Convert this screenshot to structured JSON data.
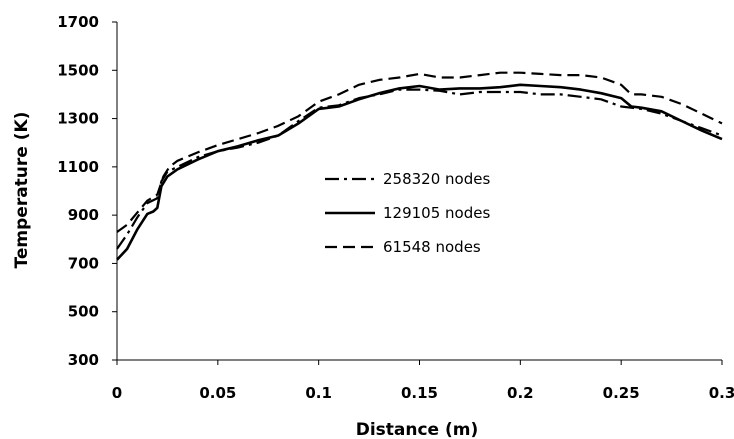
{
  "chart_data": {
    "type": "line",
    "title": "",
    "xlabel": "Distance (m)",
    "ylabel": "Temperature (K)",
    "xlim": [
      0,
      0.3
    ],
    "ylim": [
      300,
      1700
    ],
    "x_ticks": [
      "0",
      "0.05",
      "0.1",
      "0.15",
      "0.2",
      "0.25",
      "0.3"
    ],
    "y_ticks": [
      "300",
      "500",
      "700",
      "900",
      "1100",
      "1300",
      "1500",
      "1700"
    ],
    "grid": false,
    "legend_position": "center",
    "series": [
      {
        "name": "258320 nodes",
        "style": "dash-dot",
        "color": "#000000",
        "x": [
          0,
          0.005,
          0.01,
          0.015,
          0.02,
          0.022,
          0.025,
          0.03,
          0.04,
          0.05,
          0.06,
          0.07,
          0.08,
          0.09,
          0.1,
          0.11,
          0.12,
          0.13,
          0.14,
          0.15,
          0.16,
          0.17,
          0.18,
          0.19,
          0.2,
          0.21,
          0.22,
          0.23,
          0.24,
          0.25,
          0.26,
          0.27,
          0.28,
          0.29,
          0.3
        ],
        "y": [
          760,
          820,
          890,
          950,
          970,
          1040,
          1080,
          1100,
          1140,
          1165,
          1180,
          1200,
          1230,
          1290,
          1345,
          1355,
          1385,
          1400,
          1420,
          1420,
          1415,
          1400,
          1410,
          1410,
          1410,
          1400,
          1400,
          1390,
          1380,
          1350,
          1340,
          1320,
          1290,
          1260,
          1230
        ]
      },
      {
        "name": "129105 nodes",
        "style": "solid",
        "color": "#000000",
        "x": [
          0,
          0.005,
          0.01,
          0.015,
          0.018,
          0.02,
          0.022,
          0.025,
          0.03,
          0.04,
          0.05,
          0.06,
          0.07,
          0.08,
          0.09,
          0.1,
          0.11,
          0.12,
          0.13,
          0.14,
          0.15,
          0.16,
          0.17,
          0.18,
          0.19,
          0.2,
          0.21,
          0.22,
          0.23,
          0.24,
          0.25,
          0.255,
          0.26,
          0.27,
          0.28,
          0.29,
          0.3
        ],
        "y": [
          715,
          760,
          840,
          905,
          915,
          930,
          1020,
          1060,
          1090,
          1130,
          1165,
          1185,
          1210,
          1230,
          1280,
          1340,
          1350,
          1380,
          1405,
          1425,
          1435,
          1420,
          1425,
          1425,
          1430,
          1440,
          1435,
          1430,
          1420,
          1405,
          1385,
          1350,
          1345,
          1330,
          1290,
          1250,
          1215
        ]
      },
      {
        "name": "61548 nodes",
        "style": "dashed",
        "color": "#000000",
        "x": [
          0,
          0.005,
          0.01,
          0.015,
          0.02,
          0.023,
          0.026,
          0.03,
          0.04,
          0.05,
          0.06,
          0.07,
          0.08,
          0.09,
          0.1,
          0.11,
          0.12,
          0.13,
          0.14,
          0.15,
          0.16,
          0.17,
          0.18,
          0.19,
          0.2,
          0.21,
          0.22,
          0.23,
          0.24,
          0.25,
          0.255,
          0.26,
          0.27,
          0.28,
          0.29,
          0.3
        ],
        "y": [
          830,
          860,
          910,
          960,
          985,
          1060,
          1100,
          1125,
          1160,
          1190,
          1215,
          1240,
          1270,
          1310,
          1370,
          1400,
          1440,
          1460,
          1470,
          1485,
          1470,
          1470,
          1480,
          1490,
          1490,
          1485,
          1480,
          1480,
          1470,
          1440,
          1400,
          1400,
          1390,
          1360,
          1320,
          1280
        ]
      }
    ]
  }
}
